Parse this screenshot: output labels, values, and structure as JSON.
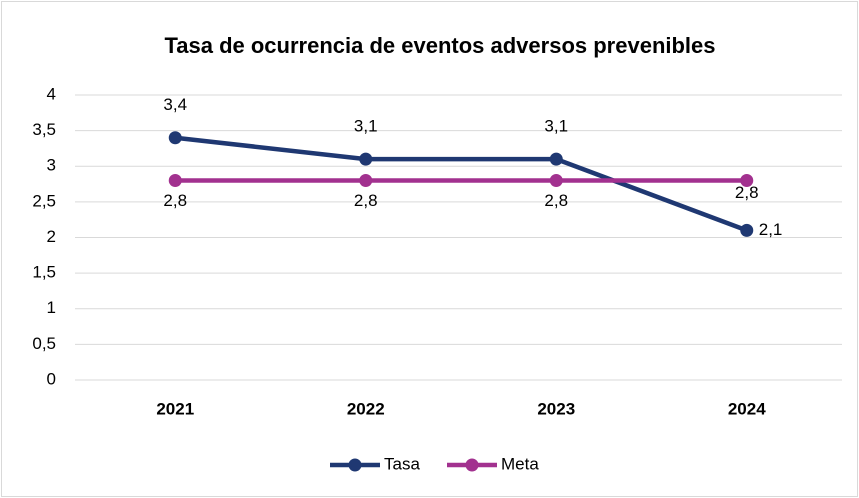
{
  "chart_data": {
    "type": "line",
    "title": "Tasa de ocurrencia de eventos adversos prevenibles",
    "categories": [
      "2021",
      "2022",
      "2023",
      "2024"
    ],
    "series": [
      {
        "name": "Tasa",
        "color": "#1f3872",
        "values": [
          3.4,
          3.1,
          3.1,
          2.1
        ],
        "value_labels": [
          "3,4",
          "3,1",
          "3,1",
          "2,1"
        ]
      },
      {
        "name": "Meta",
        "color": "#a2318f",
        "values": [
          2.8,
          2.8,
          2.8,
          2.8
        ],
        "value_labels": [
          "2,8",
          "2,8",
          "2,8",
          "2,8"
        ]
      }
    ],
    "ylim": [
      0,
      4
    ],
    "yticks": [
      0,
      {
        "value": 0.5,
        "label": "0,5"
      },
      1,
      {
        "value": 1.5,
        "label": "1,5"
      },
      2,
      {
        "value": 2.5,
        "label": "2,5"
      },
      3,
      {
        "value": 3.5,
        "label": "3,5"
      },
      4
    ],
    "grid": true,
    "legend": "bottom"
  }
}
